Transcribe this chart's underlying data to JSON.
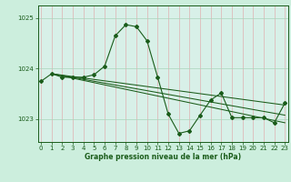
{
  "bg_color": "#cceedd",
  "plot_bg_color": "#d8f0e8",
  "line_color": "#1a5c1a",
  "grid_color": "#aad4bb",
  "xlabel": "Graphe pression niveau de la mer (hPa)",
  "yticks": [
    1023,
    1024,
    1025
  ],
  "xticks": [
    0,
    1,
    2,
    3,
    4,
    5,
    6,
    7,
    8,
    9,
    10,
    11,
    12,
    13,
    14,
    15,
    16,
    17,
    18,
    19,
    20,
    21,
    22,
    23
  ],
  "xlim": [
    -0.3,
    23.3
  ],
  "ylim": [
    1022.55,
    1025.25
  ],
  "series": [
    [
      0,
      1023.75
    ],
    [
      1,
      1023.9
    ],
    [
      2,
      1023.83
    ],
    [
      3,
      1023.83
    ],
    [
      4,
      1023.83
    ],
    [
      5,
      1023.88
    ],
    [
      6,
      1024.05
    ],
    [
      7,
      1024.65
    ],
    [
      8,
      1024.87
    ],
    [
      9,
      1024.83
    ],
    [
      10,
      1024.55
    ],
    [
      11,
      1023.83
    ],
    [
      12,
      1023.1
    ],
    [
      13,
      1022.72
    ],
    [
      14,
      1022.77
    ],
    [
      15,
      1023.08
    ],
    [
      16,
      1023.38
    ],
    [
      17,
      1023.52
    ],
    [
      18,
      1023.03
    ],
    [
      19,
      1023.03
    ],
    [
      20,
      1023.03
    ],
    [
      21,
      1023.03
    ],
    [
      22,
      1022.93
    ],
    [
      23,
      1023.32
    ]
  ],
  "trend_lines": [
    [
      [
        1,
        1023.9
      ],
      [
        23,
        1023.28
      ]
    ],
    [
      [
        1,
        1023.9
      ],
      [
        23,
        1023.08
      ]
    ],
    [
      [
        1,
        1023.9
      ],
      [
        23,
        1022.93
      ]
    ]
  ],
  "fig_width": 3.2,
  "fig_height": 2.0,
  "dpi": 100
}
